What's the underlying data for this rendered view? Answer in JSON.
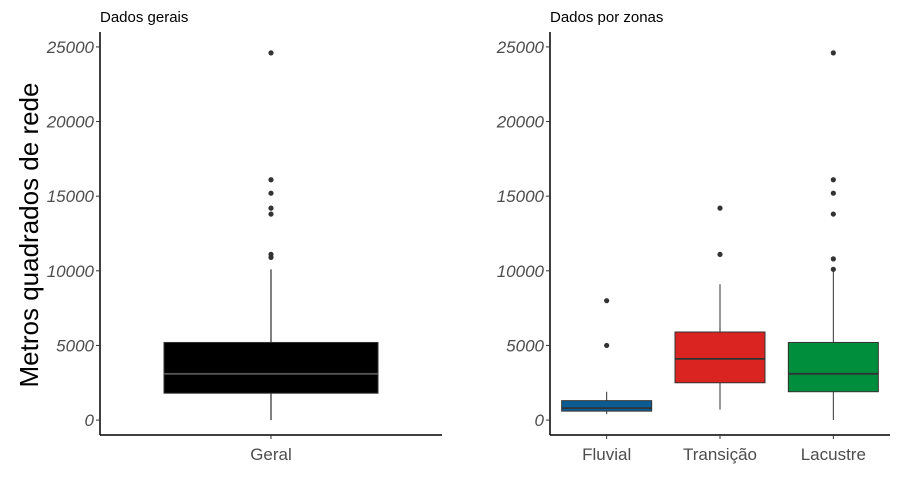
{
  "chart_data": [
    {
      "type": "box",
      "title": "Dados gerais",
      "ylabel": "Metros quadrados de rede",
      "xlabel": "",
      "ylim": [
        -1000,
        26000
      ],
      "yticks": [
        0,
        5000,
        10000,
        15000,
        20000,
        25000
      ],
      "grid": false,
      "legend": "none",
      "categories": [
        "Geral"
      ],
      "boxes": [
        {
          "category": "Geral",
          "whisker_low": 0,
          "q1": 1800,
          "median": 3100,
          "q3": 5200,
          "whisker_high": 10100,
          "outliers": [
            10900,
            11100,
            13800,
            14200,
            15200,
            16100,
            24600
          ],
          "color": "#000000"
        }
      ]
    },
    {
      "type": "box",
      "title": "Dados por zonas",
      "ylabel": "",
      "xlabel": "",
      "ylim": [
        -1000,
        26000
      ],
      "yticks": [
        0,
        5000,
        10000,
        15000,
        20000,
        25000
      ],
      "grid": false,
      "legend": "none",
      "categories": [
        "Fluvial",
        "Transição",
        "Lacustre"
      ],
      "boxes": [
        {
          "category": "Fluvial",
          "whisker_low": 400,
          "q1": 600,
          "median": 800,
          "q3": 1300,
          "whisker_high": 1900,
          "outliers": [
            5000,
            8000
          ],
          "color": "#0b5c94"
        },
        {
          "category": "Transição",
          "whisker_low": 700,
          "q1": 2500,
          "median": 4100,
          "q3": 5900,
          "whisker_high": 9100,
          "outliers": [
            11100,
            14200
          ],
          "color": "#d92422"
        },
        {
          "category": "Lacustre",
          "whisker_low": 0,
          "q1": 1900,
          "median": 3100,
          "q3": 5200,
          "whisker_high": 10000,
          "outliers": [
            10100,
            10800,
            13800,
            15200,
            16100,
            24600
          ],
          "color": "#008e3d"
        }
      ]
    }
  ]
}
